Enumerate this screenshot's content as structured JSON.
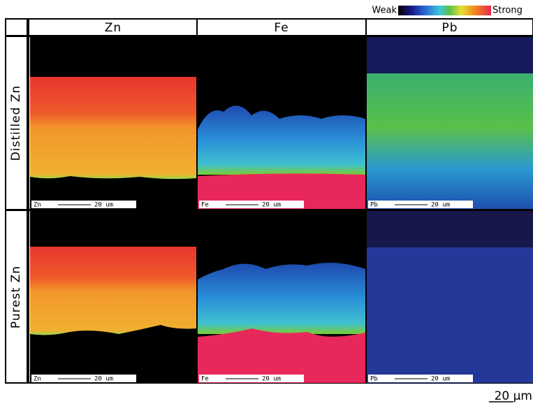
{
  "legend": {
    "weak": "Weak",
    "strong": "Strong"
  },
  "columns": [
    "Zn",
    "Fe",
    "Pb"
  ],
  "rows": [
    {
      "label": "Distilled Zn",
      "panels": [
        {
          "element": "Zn",
          "scale": "20 um"
        },
        {
          "element": "Fe",
          "scale": "20 um"
        },
        {
          "element": "Pb",
          "scale": "20 um"
        }
      ]
    },
    {
      "label": "Purest Zn",
      "panels": [
        {
          "element": "Zn",
          "scale": "20 um"
        },
        {
          "element": "Fe",
          "scale": "20 um"
        },
        {
          "element": "Pb",
          "scale": "20 um"
        }
      ]
    }
  ],
  "scale_bar": "20 μm"
}
